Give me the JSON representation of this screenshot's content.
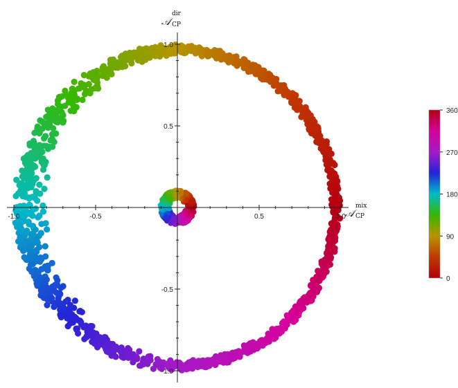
{
  "chart_data": {
    "type": "scatter",
    "title": "",
    "xlabel": {
      "symbol": "𝒜",
      "superscript": "mix",
      "subscript": "CP"
    },
    "ylabel": {
      "symbol": "𝒜",
      "superscript": "dir",
      "subscript": "CP"
    },
    "xlim": [
      -1.05,
      1.05
    ],
    "ylim": [
      -1.05,
      1.05
    ],
    "x_ticks": [
      {
        "value": -1.0,
        "label": "-1.0"
      },
      {
        "value": -0.5,
        "label": "-0.5"
      },
      {
        "value": 0.5,
        "label": "0.5"
      },
      {
        "value": 1.0,
        "label": "1.0"
      }
    ],
    "y_ticks": [
      {
        "value": 1.0,
        "label": "1.0"
      },
      {
        "value": 0.5,
        "label": "0.5"
      },
      {
        "value": -0.5,
        "label": "-0.5"
      },
      {
        "value": -1.0,
        "label": "-1.0"
      }
    ],
    "grid": false,
    "color_variable_range": [
      0,
      360
    ],
    "colorbar": {
      "ticks": [
        {
          "value": 360,
          "label": "360"
        },
        {
          "value": 270,
          "label": "270"
        },
        {
          "value": 180,
          "label": "180"
        },
        {
          "value": 90,
          "label": "90"
        },
        {
          "value": 0,
          "label": "0"
        }
      ],
      "colors": [
        "#b3000f",
        "#bf3a00",
        "#b89400",
        "#35b800",
        "#00bcc8",
        "#2323d8",
        "#a61ac8",
        "#d6009a",
        "#b3000f"
      ]
    },
    "series": [
      {
        "description_key": "outer_ring",
        "points": [
          [
            1.0,
            0.0,
            0
          ],
          [
            0.98,
            0.17,
            10
          ],
          [
            0.94,
            0.34,
            20
          ],
          [
            0.87,
            0.5,
            30
          ],
          [
            0.77,
            0.64,
            40
          ],
          [
            0.64,
            0.77,
            50
          ],
          [
            0.5,
            0.87,
            60
          ],
          [
            0.34,
            0.94,
            70
          ],
          [
            0.17,
            0.98,
            80
          ],
          [
            0.0,
            1.0,
            90
          ],
          [
            -0.17,
            0.98,
            100
          ],
          [
            -0.34,
            0.94,
            110
          ],
          [
            -0.5,
            0.87,
            120
          ],
          [
            -0.64,
            0.77,
            130
          ],
          [
            -0.77,
            0.64,
            140
          ],
          [
            -0.87,
            0.5,
            150
          ],
          [
            -0.94,
            0.34,
            160
          ],
          [
            -0.98,
            0.17,
            170
          ],
          [
            -1.0,
            0.0,
            180
          ],
          [
            -0.98,
            -0.17,
            190
          ],
          [
            -0.94,
            -0.34,
            200
          ],
          [
            -0.87,
            -0.5,
            210
          ],
          [
            -0.77,
            -0.64,
            220
          ],
          [
            -0.64,
            -0.77,
            230
          ],
          [
            -0.5,
            -0.87,
            240
          ],
          [
            -0.34,
            -0.94,
            250
          ],
          [
            -0.17,
            -0.98,
            260
          ],
          [
            0.0,
            -1.0,
            270
          ],
          [
            0.17,
            -0.98,
            280
          ],
          [
            0.34,
            -0.94,
            290
          ],
          [
            0.5,
            -0.87,
            300
          ],
          [
            0.64,
            -0.77,
            310
          ],
          [
            0.77,
            -0.64,
            320
          ],
          [
            0.87,
            -0.5,
            330
          ],
          [
            0.94,
            -0.34,
            340
          ],
          [
            0.98,
            -0.17,
            350
          ]
        ]
      },
      {
        "description_key": "inner_disk",
        "points": [
          [
            0.1,
            0.0,
            0
          ],
          [
            0.07,
            0.07,
            45
          ],
          [
            0.0,
            0.1,
            90
          ],
          [
            -0.07,
            0.07,
            135
          ],
          [
            -0.1,
            0.0,
            180
          ],
          [
            -0.07,
            -0.07,
            225
          ],
          [
            0.0,
            -0.1,
            270
          ],
          [
            0.07,
            -0.07,
            315
          ]
        ]
      }
    ]
  }
}
